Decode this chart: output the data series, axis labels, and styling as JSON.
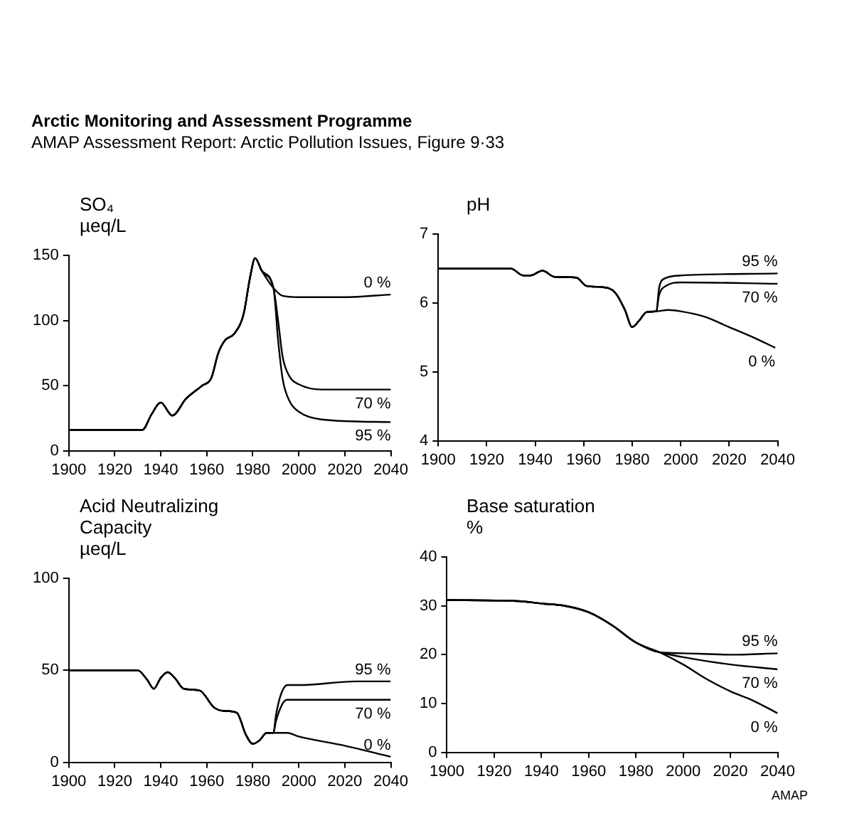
{
  "chart_data": [
    {
      "type": "other",
      "title": "Arctic Monitoring and Assessment Programme",
      "subtitle": "AMAP Assessment Report: Arctic Pollution Issues, Figure 9·33"
    },
    {
      "type": "line",
      "ylabel": "SO₄\nµeq/L",
      "xlim": [
        1900,
        2040
      ],
      "xticks": [
        1900,
        1920,
        1940,
        1960,
        1980,
        2000,
        2020,
        2040
      ],
      "ylim": [
        0,
        150
      ],
      "yticks": [
        0,
        50,
        100,
        150
      ],
      "marker": "none",
      "series": [
        {
          "name": "0 %",
          "color": "#000000",
          "x": [
            1900,
            1932,
            1936,
            1940,
            1945,
            1951,
            1958,
            1962,
            1965,
            1968,
            1972,
            1976,
            1979,
            1981,
            1984,
            1989,
            1993,
            2000,
            2020,
            2040
          ],
          "values": [
            16,
            16,
            28,
            37,
            27,
            40,
            50,
            56,
            75,
            85,
            90,
            105,
            135,
            148,
            138,
            125,
            119,
            118,
            118,
            120
          ]
        },
        {
          "name": "70 %",
          "color": "#000000",
          "x": [
            1900,
            1932,
            1936,
            1940,
            1945,
            1951,
            1958,
            1962,
            1965,
            1968,
            1972,
            1976,
            1979,
            1981,
            1984,
            1989,
            1991,
            1993,
            1996,
            2000,
            2010,
            2040
          ],
          "values": [
            16,
            16,
            28,
            37,
            27,
            40,
            50,
            56,
            75,
            85,
            90,
            105,
            135,
            148,
            138,
            125,
            100,
            72,
            57,
            51,
            47,
            47
          ]
        },
        {
          "name": "95 %",
          "color": "#000000",
          "x": [
            1900,
            1932,
            1936,
            1940,
            1945,
            1951,
            1958,
            1962,
            1965,
            1968,
            1972,
            1976,
            1979,
            1981,
            1984,
            1989,
            1991,
            1993,
            1996,
            2000,
            2010,
            2040
          ],
          "values": [
            16,
            16,
            28,
            37,
            27,
            40,
            50,
            56,
            75,
            85,
            90,
            105,
            135,
            148,
            138,
            125,
            85,
            55,
            38,
            30,
            24,
            22
          ]
        }
      ]
    },
    {
      "type": "line",
      "ylabel": "pH",
      "xlim": [
        1900,
        2040
      ],
      "xticks": [
        1900,
        1920,
        1940,
        1960,
        1980,
        2000,
        2020,
        2040
      ],
      "ylim": [
        4,
        7
      ],
      "yticks": [
        4,
        5,
        6,
        7
      ],
      "marker": "none",
      "series": [
        {
          "name": "95 %",
          "color": "#000000",
          "x": [
            1900,
            1930,
            1935,
            1938,
            1943,
            1948,
            1957,
            1961,
            1968,
            1973,
            1977,
            1980,
            1983,
            1986,
            1990,
            1991,
            1993,
            2000,
            2040
          ],
          "values": [
            6.5,
            6.5,
            6.4,
            6.4,
            6.47,
            6.38,
            6.37,
            6.25,
            6.23,
            6.15,
            5.9,
            5.65,
            5.75,
            5.87,
            5.88,
            6.2,
            6.35,
            6.4,
            6.43
          ]
        },
        {
          "name": "70 %",
          "color": "#000000",
          "x": [
            1900,
            1930,
            1935,
            1938,
            1943,
            1948,
            1957,
            1961,
            1968,
            1973,
            1977,
            1980,
            1983,
            1986,
            1990,
            1991,
            1994,
            2000,
            2040
          ],
          "values": [
            6.5,
            6.5,
            6.4,
            6.4,
            6.47,
            6.38,
            6.37,
            6.25,
            6.23,
            6.15,
            5.9,
            5.65,
            5.75,
            5.87,
            5.88,
            6.1,
            6.25,
            6.3,
            6.28
          ]
        },
        {
          "name": "0 %",
          "color": "#000000",
          "x": [
            1900,
            1930,
            1935,
            1938,
            1943,
            1948,
            1957,
            1961,
            1968,
            1973,
            1977,
            1980,
            1983,
            1986,
            1990,
            1995,
            2000,
            2010,
            2020,
            2030,
            2039
          ],
          "values": [
            6.5,
            6.5,
            6.4,
            6.4,
            6.47,
            6.38,
            6.37,
            6.25,
            6.23,
            6.15,
            5.9,
            5.65,
            5.75,
            5.87,
            5.88,
            5.9,
            5.88,
            5.8,
            5.65,
            5.5,
            5.35
          ]
        }
      ]
    },
    {
      "type": "line",
      "ylabel": "Acid Neutralizing\nCapacity\nµeq/L",
      "xlim": [
        1900,
        2040
      ],
      "xticks": [
        1900,
        1920,
        1940,
        1960,
        1980,
        2000,
        2020,
        2040
      ],
      "ylim": [
        0,
        100
      ],
      "yticks": [
        0,
        50,
        100
      ],
      "marker": "none",
      "series": [
        {
          "name": "95 %",
          "color": "#000000",
          "x": [
            1900,
            1930,
            1934,
            1937,
            1940,
            1943,
            1946,
            1950,
            1957,
            1963,
            1967,
            1973,
            1977,
            1980,
            1983,
            1986,
            1989,
            1990,
            1992,
            1995,
            2000,
            2025,
            2040
          ],
          "values": [
            50,
            50,
            45,
            40,
            46,
            49,
            46,
            40,
            39,
            30,
            28,
            27,
            15,
            10,
            12,
            16,
            16,
            25,
            36,
            42,
            42,
            44,
            44
          ]
        },
        {
          "name": "70 %",
          "color": "#000000",
          "x": [
            1900,
            1930,
            1934,
            1937,
            1940,
            1943,
            1946,
            1950,
            1957,
            1963,
            1967,
            1973,
            1977,
            1980,
            1983,
            1986,
            1989,
            1990,
            1993,
            1995,
            2040
          ],
          "values": [
            50,
            50,
            45,
            40,
            46,
            49,
            46,
            40,
            39,
            30,
            28,
            27,
            15,
            10,
            12,
            16,
            16,
            22,
            32,
            34,
            34
          ]
        },
        {
          "name": "0 %",
          "color": "#000000",
          "x": [
            1900,
            1930,
            1934,
            1937,
            1940,
            1943,
            1946,
            1950,
            1957,
            1963,
            1967,
            1973,
            1977,
            1980,
            1983,
            1986,
            1989,
            1995,
            2000,
            2020,
            2040
          ],
          "values": [
            50,
            50,
            45,
            40,
            46,
            49,
            46,
            40,
            39,
            30,
            28,
            27,
            15,
            10,
            12,
            16,
            16,
            16,
            14,
            9,
            3
          ]
        }
      ]
    },
    {
      "type": "line",
      "ylabel": "Base saturation\n%",
      "xlim": [
        1900,
        2040
      ],
      "xticks": [
        1900,
        1920,
        1940,
        1960,
        1980,
        2000,
        2020,
        2040
      ],
      "ylim": [
        0,
        40
      ],
      "yticks": [
        0,
        10,
        20,
        30,
        40
      ],
      "marker": "none",
      "annotations": [
        "AMAP"
      ],
      "series": [
        {
          "name": "95 %",
          "color": "#000000",
          "x": [
            1900,
            1930,
            1940,
            1950,
            1960,
            1970,
            1980,
            1990,
            2000,
            2020,
            2040
          ],
          "values": [
            31.2,
            31,
            30.5,
            30,
            28.7,
            26,
            22.5,
            20.5,
            20.3,
            20,
            20.3
          ]
        },
        {
          "name": "70 %",
          "color": "#000000",
          "x": [
            1900,
            1930,
            1940,
            1950,
            1960,
            1970,
            1980,
            1990,
            2000,
            2020,
            2040
          ],
          "values": [
            31.2,
            31,
            30.5,
            30,
            28.7,
            26,
            22.5,
            20.5,
            19.5,
            18,
            17
          ]
        },
        {
          "name": "0 %",
          "color": "#000000",
          "x": [
            1900,
            1930,
            1940,
            1950,
            1960,
            1970,
            1980,
            1990,
            2000,
            2010,
            2020,
            2030,
            2040
          ],
          "values": [
            31.2,
            31,
            30.5,
            30,
            28.7,
            26,
            22.5,
            20.5,
            18,
            15,
            12.5,
            10.5,
            8
          ]
        }
      ]
    }
  ]
}
